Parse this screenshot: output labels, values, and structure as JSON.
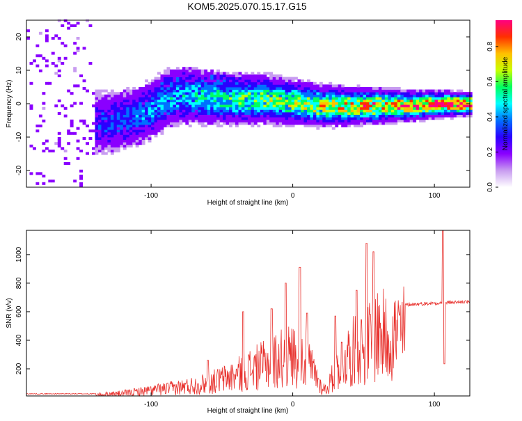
{
  "title": "KOM5.2025.070.15.17.G15",
  "chart_data": [
    {
      "type": "heatmap",
      "name": "spectrogram",
      "xlabel": "Height of straight line (km)",
      "ylabel": "Frequency (Hz)",
      "xlim": [
        -188,
        125
      ],
      "ylim": [
        -25,
        25
      ],
      "xticks": [
        -100,
        0,
        100
      ],
      "yticks": [
        -20,
        -10,
        0,
        10,
        20
      ],
      "colorbar": {
        "label": "Normalized spectral amplitude",
        "range": [
          0,
          0.95
        ],
        "ticks": [
          "0.0",
          "0.2",
          "0.4",
          "0.6",
          "0.8"
        ],
        "colors": [
          "#ffffff",
          "#c89cf0",
          "#8a00ff",
          "#2a00ff",
          "#0070ff",
          "#00ffff",
          "#00ff60",
          "#c8ff00",
          "#ffc000",
          "#ff3000",
          "#ff0080"
        ]
      },
      "ridge": [
        [
          -130,
          -6
        ],
        [
          -110,
          -4
        ],
        [
          -100,
          -2
        ],
        [
          -90,
          1
        ],
        [
          -80,
          2
        ],
        [
          -70,
          2
        ],
        [
          -60,
          1.5
        ],
        [
          -40,
          1
        ],
        [
          -20,
          1
        ],
        [
          0,
          0
        ],
        [
          20,
          -1
        ],
        [
          40,
          -1
        ],
        [
          60,
          -1
        ],
        [
          80,
          -1
        ],
        [
          100,
          -0.5
        ],
        [
          125,
          -0.5
        ]
      ]
    },
    {
      "type": "line",
      "name": "snr",
      "xlabel": "Height of straight line (km)",
      "ylabel": "SNR (v/v)",
      "xlim": [
        -188,
        125
      ],
      "ylim": [
        10,
        1170
      ],
      "xticks": [
        -100,
        0,
        100
      ],
      "yticks": [
        200,
        400,
        600,
        800,
        1000
      ],
      "color": "#e8302c",
      "envelope": [
        [
          -188,
          25
        ],
        [
          -140,
          25
        ],
        [
          -120,
          40
        ],
        [
          -100,
          70
        ],
        [
          -80,
          100
        ],
        [
          -60,
          140
        ],
        [
          -40,
          220
        ],
        [
          -30,
          280
        ],
        [
          -20,
          320
        ],
        [
          -10,
          380
        ],
        [
          0,
          420
        ],
        [
          10,
          360
        ],
        [
          18,
          180
        ],
        [
          20,
          100
        ],
        [
          24,
          80
        ],
        [
          30,
          250
        ],
        [
          35,
          380
        ],
        [
          45,
          480
        ],
        [
          55,
          560
        ],
        [
          60,
          650
        ],
        [
          65,
          600
        ],
        [
          70,
          620
        ],
        [
          75,
          640
        ],
        [
          80,
          650
        ],
        [
          90,
          655
        ],
        [
          100,
          660
        ],
        [
          110,
          665
        ],
        [
          125,
          670
        ]
      ],
      "peaks": [
        [
          -60,
          260
        ],
        [
          -35,
          600
        ],
        [
          -15,
          620
        ],
        [
          -5,
          800
        ],
        [
          5,
          910
        ],
        [
          10,
          590
        ],
        [
          30,
          570
        ],
        [
          45,
          750
        ],
        [
          52,
          1080
        ],
        [
          57,
          1020
        ],
        [
          106,
          1165
        ],
        [
          107,
          235
        ]
      ]
    }
  ]
}
